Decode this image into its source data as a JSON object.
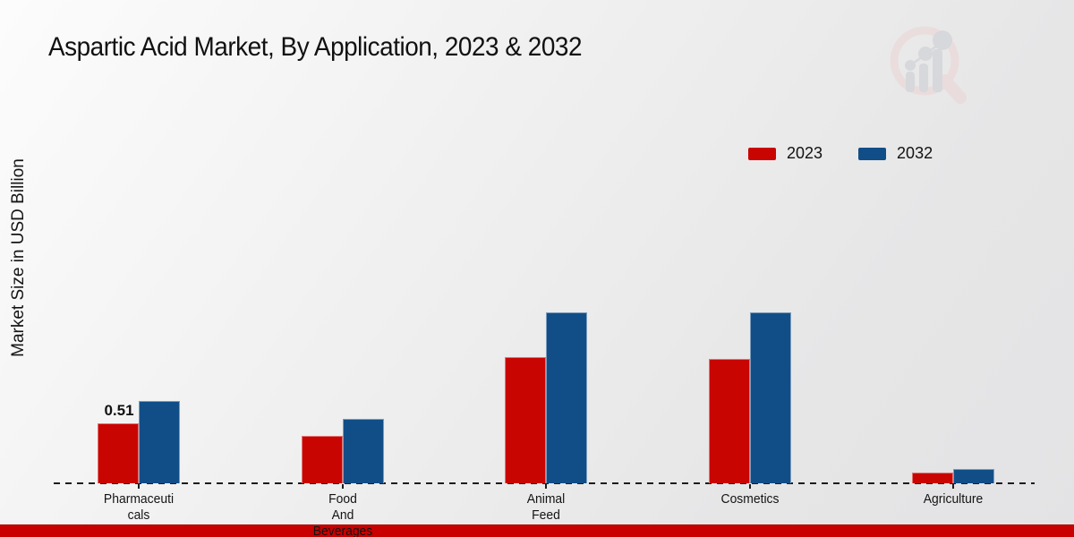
{
  "header": {
    "title": "Aspartic Acid Market, By Application, 2023 & 2032"
  },
  "colors": {
    "series_2023": "#c90502",
    "series_2032": "#114e87",
    "footer_strip": "#c80000",
    "axis_line": "#1c1c1c",
    "watermark_pink": "#ecd4d4",
    "watermark_gray": "#c9cbd1"
  },
  "icons": {
    "watermark": "magnifier-bar-chart-logo-icon"
  },
  "chart_data": {
    "type": "bar",
    "title": "Aspartic Acid Market, By Application, 2023 & 2032",
    "xlabel": "",
    "ylabel": "Market Size in USD Billion",
    "categories": [
      "Pharmaceuticals",
      "Food And Beverages",
      "Animal Feed",
      "Cosmetics",
      "Agriculture"
    ],
    "categories_display": [
      "Pharmaceuti\ncals",
      "Food\nAnd\nBeverages",
      "Animal\nFeed",
      "Cosmetics",
      "Agriculture"
    ],
    "series": [
      {
        "name": "2023",
        "color": "#c90502",
        "values": [
          0.51,
          0.4,
          1.07,
          1.06,
          0.09
        ]
      },
      {
        "name": "2032",
        "color": "#114e87",
        "values": [
          0.7,
          0.55,
          1.45,
          1.45,
          0.12
        ]
      }
    ],
    "value_labels": [
      {
        "series": "2023",
        "category": "Pharmaceuticals",
        "text": "0.51"
      }
    ],
    "ylim": [
      0,
      1.6
    ],
    "grid": false,
    "y_axis_ticks_visible": false,
    "legend_position": "top-right"
  }
}
